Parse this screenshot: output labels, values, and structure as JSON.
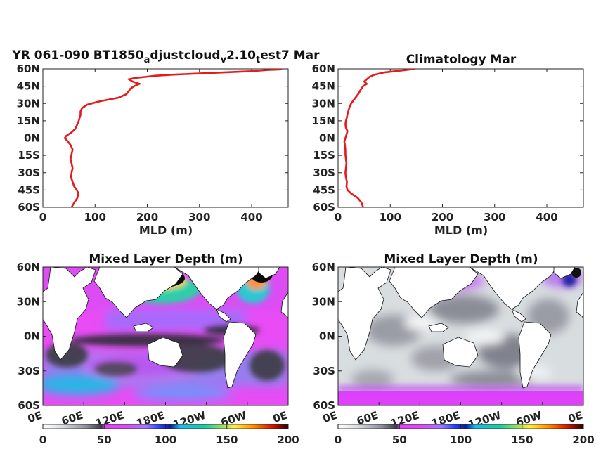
{
  "chart_data": [
    {
      "type": "line",
      "title": "YR 061-090 BT1850",
      "title_parts": [
        "a",
        "djustcloud",
        "v",
        "2.10",
        "t",
        "est7 Mar"
      ],
      "xlabel": "MLD (m)",
      "ylabel": "",
      "xlim": [
        0,
        470
      ],
      "ylim": [
        -60,
        60
      ],
      "xticks": [
        "0",
        "100",
        "200",
        "300",
        "400"
      ],
      "yticks": [
        "60N",
        "45N",
        "30N",
        "15N",
        "0N",
        "15S",
        "30S",
        "45S",
        "60S"
      ],
      "color": "#e41a1c",
      "series": [
        {
          "x": [
            55,
            60,
            66,
            68,
            65,
            60,
            57,
            54,
            55,
            57,
            55,
            53,
            55,
            57,
            53,
            48,
            42,
            45,
            55,
            62,
            65,
            68,
            70,
            72,
            72,
            75,
            85,
            110,
            145,
            160,
            165,
            168,
            175,
            185,
            172,
            165,
            175,
            195,
            215,
            250,
            300,
            350,
            400,
            430,
            455,
            458
          ],
          "y": [
            -60,
            -56,
            -52,
            -48,
            -45,
            -42,
            -38,
            -34,
            -30,
            -26,
            -22,
            -18,
            -14,
            -10,
            -6,
            -3,
            0,
            2,
            5,
            8,
            11,
            14,
            17,
            20,
            23,
            26,
            29,
            32,
            35,
            38,
            41,
            43,
            45,
            47,
            49,
            51,
            52,
            53,
            54,
            55,
            56,
            57,
            58,
            59,
            59.5,
            60
          ]
        }
      ]
    },
    {
      "type": "line",
      "title": "Climatology Mar",
      "xlabel": "MLD (m)",
      "ylabel": "",
      "xlim": [
        0,
        470
      ],
      "ylim": [
        -60,
        60
      ],
      "xticks": [
        "0",
        "100",
        "200",
        "300",
        "400"
      ],
      "yticks": [
        "60N",
        "45N",
        "30N",
        "15N",
        "0N",
        "15S",
        "30S",
        "45S",
        "60S"
      ],
      "color": "#e41a1c",
      "series": [
        {
          "x": [
            48,
            45,
            38,
            25,
            18,
            16,
            17,
            15,
            14,
            15,
            16,
            15,
            14,
            14,
            13,
            12,
            14,
            16,
            18,
            15,
            14,
            15,
            17,
            18,
            20,
            22,
            25,
            30,
            35,
            40,
            42,
            45,
            48,
            55,
            50,
            55,
            60,
            70,
            90,
            110,
            130,
            148
          ],
          "y": [
            -60,
            -56,
            -52,
            -48,
            -45,
            -42,
            -38,
            -34,
            -30,
            -26,
            -22,
            -18,
            -14,
            -10,
            -6,
            -3,
            0,
            3,
            6,
            9,
            12,
            15,
            18,
            21,
            24,
            27,
            30,
            33,
            36,
            39,
            41,
            43,
            45,
            47,
            49,
            51,
            53,
            55,
            57,
            58,
            59,
            60
          ]
        }
      ]
    },
    {
      "type": "heatmap",
      "title": "Mixed Layer Depth (m)",
      "xticks": [
        "0E",
        "60E",
        "120E",
        "180E",
        "120W",
        "60W",
        "0E"
      ],
      "yticks": [
        "60N",
        "30N",
        "0N",
        "30S",
        "60S"
      ],
      "colorbar_ticks": [
        "0",
        "50",
        "100",
        "150",
        "200"
      ],
      "clim": [
        0,
        200
      ]
    },
    {
      "type": "heatmap",
      "title": "Mixed Layer Depth (m)",
      "xticks": [
        "0E",
        "60E",
        "120E",
        "180E",
        "120W",
        "60W",
        "0E"
      ],
      "yticks": [
        "60N",
        "30N",
        "0N",
        "30S",
        "60S"
      ],
      "colorbar_ticks": [
        "0",
        "50",
        "100",
        "150",
        "200"
      ],
      "clim": [
        0,
        200
      ]
    }
  ]
}
